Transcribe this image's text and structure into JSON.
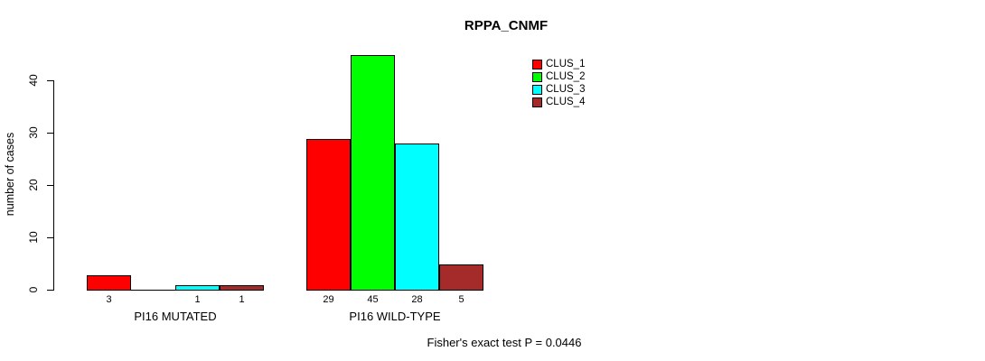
{
  "chart_data": {
    "type": "bar",
    "title": "RPPA_CNMF",
    "xlabel": "",
    "ylabel": "number of cases",
    "categories": [
      "PI16 MUTATED",
      "PI16 WILD-TYPE"
    ],
    "series": [
      {
        "name": "CLUS_1",
        "color": "#FF0000",
        "values": [
          3,
          29
        ]
      },
      {
        "name": "CLUS_2",
        "color": "#00FF00",
        "values": [
          0,
          45
        ]
      },
      {
        "name": "CLUS_3",
        "color": "#00FFFF",
        "values": [
          1,
          28
        ]
      },
      {
        "name": "CLUS_4",
        "color": "#A52A2A",
        "values": [
          1,
          5
        ]
      }
    ],
    "bar_value_labels": [
      [
        "3",
        "",
        "1",
        "1"
      ],
      [
        "29",
        "45",
        "28",
        "5"
      ]
    ],
    "ylim": [
      0,
      46
    ],
    "yticks": [
      0,
      10,
      20,
      30,
      40
    ],
    "grid": false,
    "legend_position": "top-right",
    "legend_entries": [
      "CLUS_1",
      "CLUS_2",
      "CLUS_3",
      "CLUS_4"
    ],
    "annotation": "Fisher's exact test P = 0.0446",
    "bar_border_color": "#000000"
  }
}
